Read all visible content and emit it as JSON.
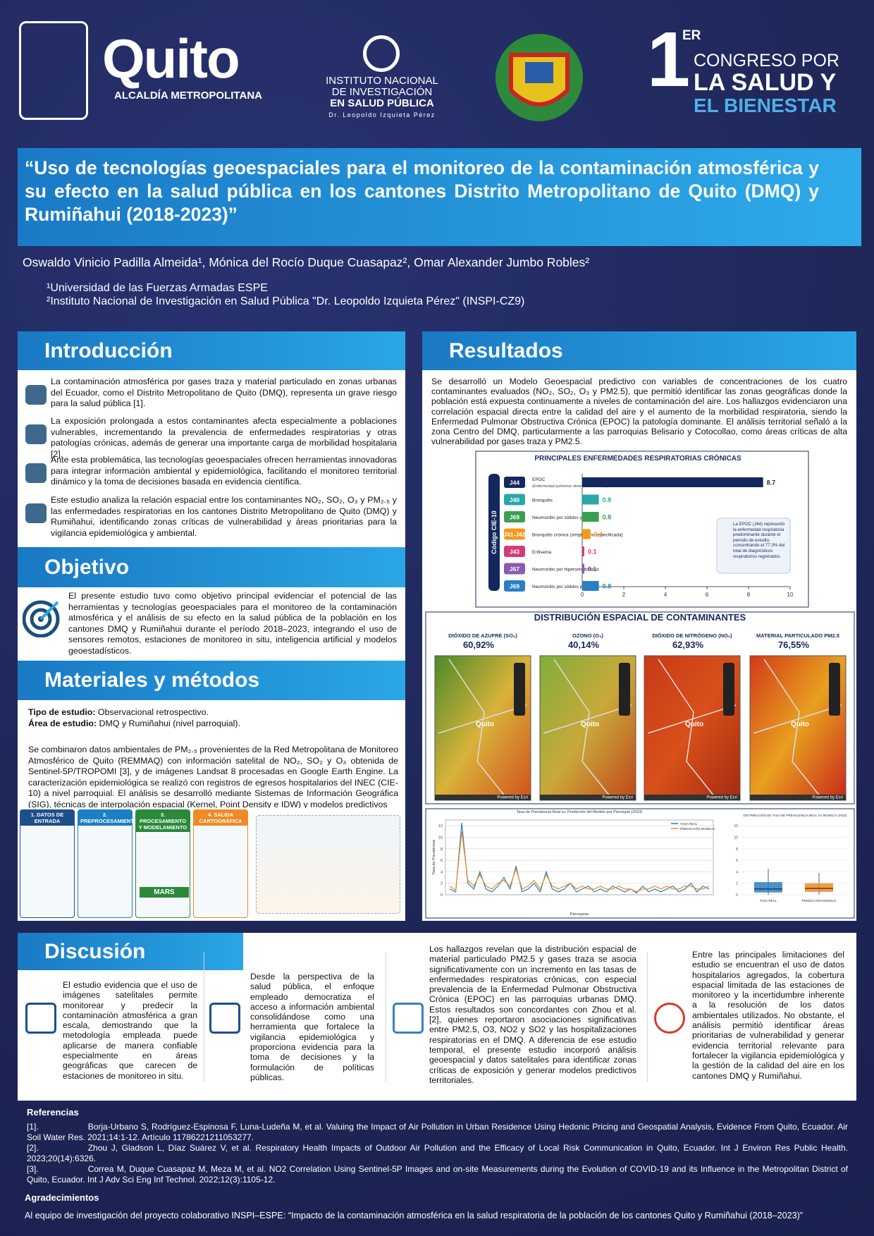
{
  "header": {
    "quito": "Quito",
    "alcaldia": "ALCALDÍA METROPOLITANA",
    "inspi": [
      "INSTITUTO NACIONAL",
      "DE INVESTIGACIÓN",
      "EN SALUD PÚBLICA",
      "Dr. Leopoldo Izquieta Pérez"
    ],
    "congreso": {
      "num": "1",
      "sup": "ER",
      "line1": "CONGRESO POR",
      "line2": "LA SALUD Y",
      "line3": "EL BIENESTAR"
    }
  },
  "title": "“Uso de tecnologías geoespaciales para el monitoreo de la contaminación atmosférica y su efecto en la salud pública en los cantones Distrito Metropolitano de Quito (DMQ) y Rumiñahui (2018-2023)”",
  "authors": "Oswaldo Vinicio Padilla Almeida¹, Mónica del Rocío Duque Cuasapaz², Omar Alexander Jumbo Robles²",
  "affiliations": [
    "¹Universidad de las Fuerzas Armadas ESPE",
    "²Instituto Nacional de Investigación en Salud Pública \"Dr. Leopoldo Izquieta Pérez\" (INSPI-CZ9)"
  ],
  "introduccion": {
    "heading": "Introducción",
    "paragraphs": [
      "La contaminación atmosférica por gases traza y material particulado en zonas urbanas del Ecuador, como el Distrito Metropolitano de Quito (DMQ), representa un grave riesgo para la salud pública [1].",
      "La exposición prolongada a estos contaminantes afecta especialmente a poblaciones vulnerables, incrementando la prevalencia de enfermedades respiratorias y otras patologías crónicas, además de generar una importante carga de morbilidad hospitalaria [2].",
      "Ante esta problemática, las tecnologías geoespaciales ofrecen herramientas innovadoras para integrar información ambiental y epidemiológica, facilitando el monitoreo territorial dinámico y la toma de decisiones basada en evidencia científica.",
      "Este estudio analiza la relación espacial entre los contaminantes NO₂, SO₂, O₃ y PM₂.₅ y las enfermedades respiratorias en los cantones Distrito Metropolitano de Quito (DMQ) y Rumiñahui, identificando zonas críticas de vulnerabilidad y áreas prioritarias para la vigilancia epidemiológica y ambiental."
    ]
  },
  "objetivo": {
    "heading": "Objetivo",
    "text": "El presente estudio tuvo como objetivo principal evidenciar el potencial de las herramientas y tecnologías geoespaciales para el monitoreo de la contaminación atmosférica y el análisis de su efecto en la salud pública de la población en los cantones DMQ y Rumiñahui durante el período 2018–2023, integrando el uso de sensores remotos, estaciones de monitoreo in situ, inteligencia artificial y modelos geoestadísticos."
  },
  "materiales": {
    "heading": "Materiales y métodos",
    "tipo_label": "Tipo de estudio:",
    "tipo": "Observacional retrospectivo.",
    "area_label": "Área de estudio:",
    "area": "DMQ y Rumiñahui  (nivel parroquial).",
    "body": "Se combinaron datos ambientales de PM₂.₅ provenientes de la Red Metropolitana de Monitoreo Atmosférico de Quito (REMMAQ) con información satelital de NO₂, SO₂ y O₃ obtenida de Sentinel-5P/TROPOMI [3], y de imágenes Landsat 8 procesadas en Google Earth Engine. La caracterización epidemiológica se realizó con registros de egresos hospitalarios del INEC (CIE-10) a nivel parroquial. El análisis se desarrolló mediante Sistemas de Información Geográfica (SIG), técnicas de interpolación espacial (Kernel, Point Density e IDW) y modelos predictivos",
    "steps": [
      "1. DATOS DE ENTRADA",
      "2. PREPROCESAMIENTO",
      "3. PROCESAMIENTO Y MODELAMIENTO",
      "4. SALIDA CARTOGRÁFICA"
    ],
    "model": "MARS"
  },
  "resultados": {
    "heading": "Resultados",
    "body": "Se desarrolló un Modelo Geoespacial predictivo con variables de concentraciones de los cuatro contaminantes evaluados (NO₂, SO₂, O₃ y PM2.5), que permitió identificar las zonas geográficas donde la población está expuesta continuamente a niveles de contaminación del aire. Los hallazgos evidenciaron una correlación espacial directa entre la calidad del aire y el aumento de la morbilidad respiratoria, siendo la Enfermedad Pulmonar Obstructiva Crónica (EPOC) la patología dominante. El análisis territorial señaló a la zona Centro del DMQ, particularmente a las parroquias Belisario y Cotocollao, como áreas críticas de alta vulnerabilidad por gases traza y PM2.5."
  },
  "chart_data": [
    {
      "type": "hbar",
      "title": "PRINCIPALES ENFERMEDADES RESPIRATORIAS CRÓNICAS",
      "y_label": "Código CIE-10",
      "categories": [
        "J44",
        "J40",
        "J69",
        "J41-J42",
        "J43",
        "J67",
        "J69"
      ],
      "descriptions": [
        "EPOC",
        "Bronquitis",
        "Neumonitis por sólidos y líquidos",
        "Bronquitis crónica (simple y no especificada)",
        "Enfisema",
        "Neumonitis por hipersensibilidad",
        "Neumonitis por sólidos y líquidos"
      ],
      "subdescription": "(Enfermedad pulmonar obstructiva crónica)",
      "values": [
        8.7,
        0.8,
        0.8,
        0.4,
        0.1,
        0.1,
        0.8
      ],
      "colors": [
        "#14285e",
        "#2aa7a7",
        "#3aa050",
        "#f39a1b",
        "#d63a7a",
        "#8a5bb0",
        "#2a7fc4"
      ],
      "xlim": [
        0,
        10
      ],
      "xticks": [
        0,
        2,
        4,
        6,
        8,
        10
      ],
      "note": "La EPOC (J44) representó la enfermedad respiratoria predominante durante el periodo de estudio, concentrando el 77.3% del total de diagnósticos respiratorios registrados."
    },
    {
      "type": "maps",
      "title": "DISTRIBUCIÓN ESPACIAL DE CONTAMINANTES",
      "panels": [
        {
          "name": "DIÓXIDO DE AZUFRE (SO₂)",
          "pct": "60,92%"
        },
        {
          "name": "OZONO (O₃)",
          "pct": "40,14%"
        },
        {
          "name": "DIÓXIDO DE NITRÓGENO (NO₂)",
          "pct": "62,93%"
        },
        {
          "name": "MATERIAL PARTICULADO PM2.5",
          "pct": "76,55%"
        }
      ],
      "place": "Quito",
      "credit": "Powered by Esri"
    },
    {
      "type": "line",
      "title": "Tasa de Prevalencia Real vs. Predicción del Modelo por Parroquia (2023)",
      "x_label": "Parroquias",
      "y_label": "Tasa de Prevalencia",
      "ylim": [
        0,
        13
      ],
      "yticks": [
        0,
        2,
        4,
        6,
        8,
        10,
        12
      ],
      "series": [
        {
          "name": "TASA REAL",
          "color": "#2a7fc4",
          "values": [
            1,
            0.5,
            12.5,
            2,
            1,
            4,
            1,
            0.5,
            1.5,
            3,
            1,
            5,
            0.5,
            1,
            2,
            0.5,
            4,
            1,
            0.5,
            1,
            2,
            0.5,
            1,
            1.5,
            0.5,
            1,
            0.5,
            1.5,
            1,
            0.5,
            1,
            0.3,
            1.5,
            0.5,
            1,
            0.5,
            1,
            1.5,
            0.5,
            1,
            2,
            0.5,
            1.5,
            1
          ]
        },
        {
          "name": "PREDICCIÓN MODELO",
          "color": "#f08a24",
          "values": [
            1.5,
            0.8,
            11,
            2.5,
            1.5,
            3.5,
            1.5,
            1,
            2,
            2.5,
            1.5,
            4.5,
            1,
            1.5,
            2.5,
            1,
            3.5,
            1.5,
            1,
            1.5,
            2,
            1,
            1.5,
            1,
            1,
            1.5,
            1,
            1,
            1.5,
            1,
            1,
            0.5,
            1,
            1,
            1.5,
            1,
            1.5,
            1,
            1,
            1.5,
            1.5,
            1,
            1,
            1.5
          ]
        }
      ]
    },
    {
      "type": "box",
      "title": "DISTRIBUCIÓN DE TASA DE PREVALENCIA REAL VS MODELO (2023)",
      "categories": [
        "TASA REAL",
        "PREDICCIÓN MODELO"
      ],
      "ylim": [
        0,
        13
      ],
      "yticks": [
        0,
        2,
        4,
        6,
        8,
        10,
        12
      ],
      "boxes": [
        {
          "whisker_low": 0,
          "q1": 0.4,
          "median": 1,
          "q3": 2.2,
          "whisker_high": 4.5,
          "color": "#2a7fc4"
        },
        {
          "whisker_low": 0,
          "q1": 0.5,
          "median": 1.1,
          "q3": 2,
          "whisker_high": 3.8,
          "color": "#f08a24"
        }
      ]
    }
  ],
  "discusion": {
    "heading": "Discusión",
    "columns": [
      "El estudio evidencia que el uso de imágenes satelitales permite monitorear y predecir la contaminación atmosférica a gran escala, demostrando que la metodología empleada puede aplicarse de manera confiable especialmente en áreas geográficas que carecen de estaciones de monitoreo in situ.",
      "Desde la perspectiva de la salud pública, el enfoque empleado democratiza el acceso a información ambiental consolidándose como una herramienta que fortalece la vigilancia epidemiológica y proporciona evidencia para la toma de decisiones y la formulación de políticas públicas.",
      "Los hallazgos revelan que la distribución espacial de material particulado PM2.5 y gases traza se asocia significativamente con un incremento en las tasas de enfermedades respiratorias crónicas, con especial prevalencia de la Enfermedad Pulmonar Obstructiva Crónica (EPOC) en las parroquias urbanas DMQ. Estos resultados son concordantes con Zhou et al. [2], quienes reportaron asociaciones significativas entre PM2.5, O3, NO2 y SO2 y las hospitalizaciones respiratorias en el DMQ. A diferencia de ese estudio temporal, el presente estudio incorporó análisis geoespacial y datos satelitales para identificar zonas críticas de exposición y generar modelos predictivos territoriales.",
      "Entre las principales limitaciones del estudio se encuentran el uso de datos hospitalarios agregados, la cobertura espacial limitada de las estaciones de monitoreo y la incertidumbre inherente a la resolución de los datos ambientales utilizados. No obstante, el análisis permitió identificar áreas prioritarias de vulnerabilidad y generar evidencia territorial relevante para fortalecer la vigilancia epidemiológica y la gestión de la calidad del aire en los cantones DMQ y Rumiñahui."
    ]
  },
  "referencias": {
    "heading": "Referencias",
    "items": [
      {
        "num": "[1].",
        "text": "Borja-Urbano S, Rodríguez-Espinosa F, Luna-Ludeña M, et al. Valuing the Impact of Air Pollution in Urban Residence Using Hedonic Pricing and Geospatial Analysis, Evidence From Quito, Ecuador. Air Soil Water Res. 2021;14:1-12. Artículo 11786221211053277."
      },
      {
        "num": "[2].",
        "text": "Zhou J, Gladson L, Díaz Suárez V, et al. Respiratory Health Impacts of Outdoor Air Pollution and the Efficacy of Local Risk Communication in Quito, Ecuador. Int J Environ Res Public Health. 2023;20(14):6326."
      },
      {
        "num": "[3].",
        "text": "Correa M, Duque Cuasapaz M, Meza M, et al. NO2 Correlation Using Sentinel-5P Images and on-site Measurements during the Evolution of COVID-19 and its Influence in the Metropolitan District of Quito, Ecuador. Int J Adv Sci Eng Inf Technol. 2022;12(3):1105-12."
      }
    ]
  },
  "agradecimientos": {
    "heading": "Agradecimientos",
    "text": "Al equipo de investigación del proyecto colaborativo INSPI–ESPE: “Impacto de la contaminación atmosférica en la salud respiratoria de la población de los cantones Quito y Rumiñahui (2018–2023)”"
  }
}
